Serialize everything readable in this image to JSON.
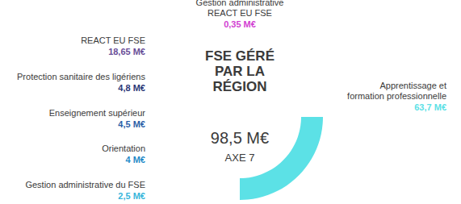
{
  "chart_data": {
    "type": "pie",
    "title": "FSE GÉRÉ PAR LA RÉGION",
    "annotations": [
      "98,5 M€",
      "AXE 7"
    ],
    "categories": [
      "Apprentissage et\nformation professionnelle",
      "Gestion administrative du FSE",
      "Orientation",
      "Enseignement supérieur",
      "Protection sanitaire des ligériens",
      "REACT EU FSE",
      "Gestion administrative\nREACT EU FSE"
    ],
    "values": [
      63.7,
      2.5,
      4,
      4.5,
      4.8,
      18.65,
      0.35
    ],
    "value_labels": [
      "63,7 M€",
      "2,5 M€",
      "4 M€",
      "4,5 M€",
      "4,8 M€",
      "18,65 M€",
      "0,35 M€"
    ],
    "colors": [
      "#5ce1e6",
      "#38b6db",
      "#1f8ac8",
      "#2c5fa8",
      "#2b3878",
      "#6a4e98",
      "#d23fd2"
    ],
    "data_labels": true
  }
}
